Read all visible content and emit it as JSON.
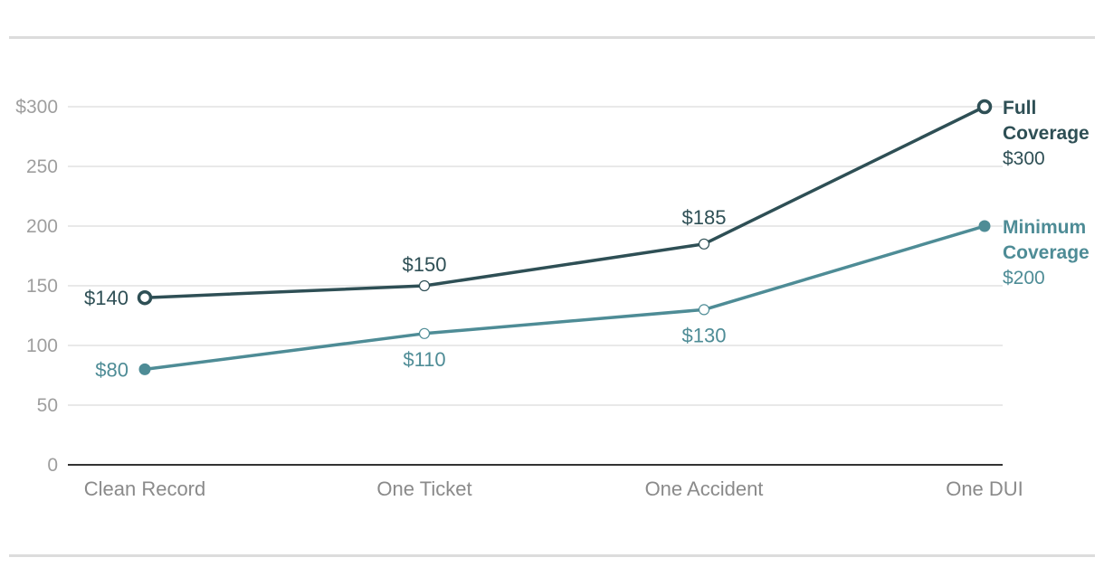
{
  "chart_data": {
    "type": "line",
    "categories": [
      "Clean Record",
      "One Ticket",
      "One Accident",
      "One DUI"
    ],
    "y_ticks": [
      "0",
      "50",
      "100",
      "150",
      "200",
      "250",
      "$300"
    ],
    "y_tick_values": [
      0,
      50,
      100,
      150,
      200,
      250,
      300
    ],
    "ylim": [
      0,
      300
    ],
    "grid": true,
    "series": [
      {
        "name_lines": [
          "Full",
          "Coverage"
        ],
        "values": [
          140,
          150,
          185,
          300
        ],
        "labels": [
          "$140",
          "$150",
          "$185",
          "$300"
        ],
        "color": "#2e4f55"
      },
      {
        "name_lines": [
          "Minimum",
          "Coverage"
        ],
        "values": [
          80,
          110,
          130,
          200
        ],
        "labels": [
          "$80",
          "$110",
          "$130",
          "$200"
        ],
        "color": "#4e8c96"
      }
    ]
  }
}
